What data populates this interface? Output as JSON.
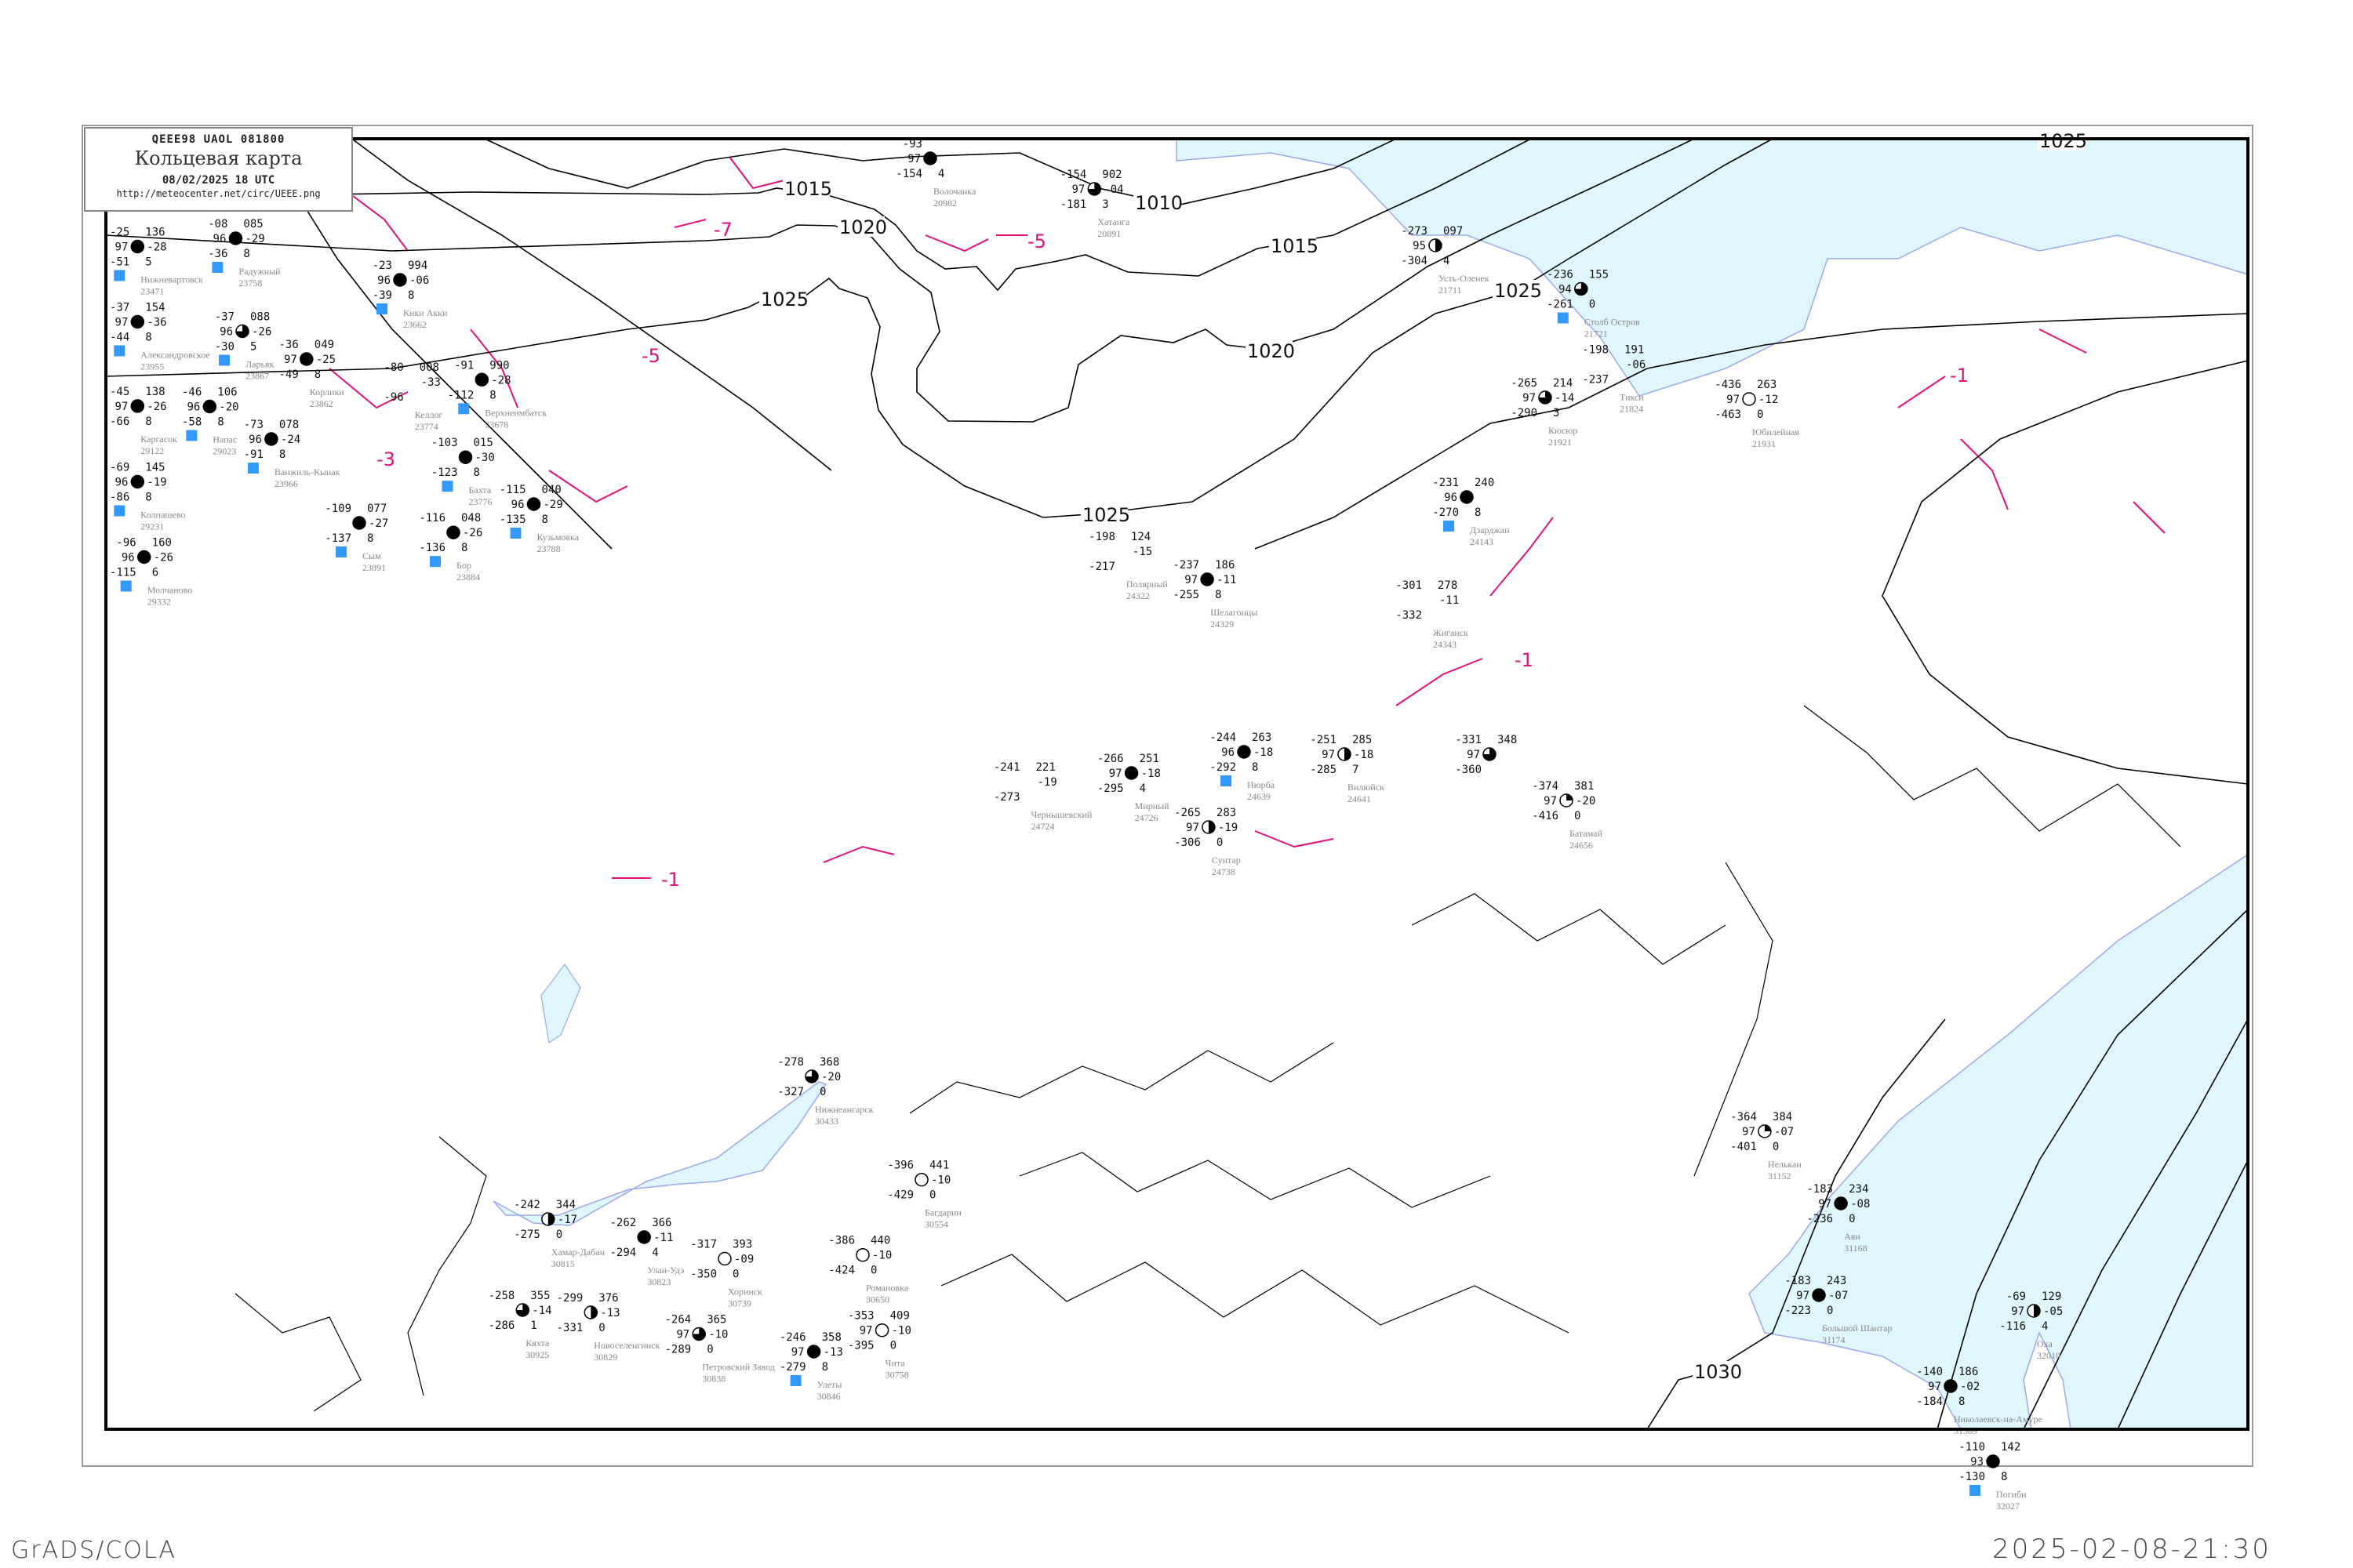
{
  "header": {
    "bulletin_code": "QEEE98   UAOL   081800",
    "title": "Кольцевая карта",
    "datetime": "08/02/2025 18 UTC",
    "url": "http://meteocenter.net/circ/UEEE.png"
  },
  "footer": {
    "software": "GrADS/COLA",
    "generated": "2025-02-08-21:30"
  },
  "colors": {
    "isobar": "#000000",
    "isotherm": "#e0107a",
    "water": "#e0f6fd",
    "coastline": "#9aa8f0",
    "snow_marker": "#3399ff",
    "station_name": "#888888"
  },
  "isobar_labels": [
    "1010",
    "1015",
    "1020",
    "1025",
    "1015",
    "1020",
    "1025",
    "1025",
    "1030",
    "1025"
  ],
  "isotherm_labels": [
    "-5",
    "-3",
    "-1",
    "-1",
    "-7",
    "-1",
    "-5"
  ],
  "stations": [
    {
      "name": "Волочанка",
      "id": "20982",
      "tl": "-93",
      "ml": "97",
      "bl": "-154",
      "tr": "",
      "mr": "",
      "br": "4",
      "cover": "full"
    },
    {
      "name": "Хатанга",
      "id": "20891",
      "tl": "-154",
      "ml": "97",
      "bl": "-181",
      "tr": "902",
      "mr": "-04",
      "br": "3",
      "cover": "three-quarter"
    },
    {
      "name": "Усть-Оленек",
      "id": "21711",
      "tl": "-273",
      "ml": "95",
      "bl": "-304",
      "tr": "097",
      "mr": "",
      "br": "4",
      "cover": "half"
    },
    {
      "name": "Столб Остров",
      "id": "21721",
      "tl": "-236",
      "ml": "94",
      "bl": "-261",
      "tr": "155",
      "mr": "",
      "br": "0",
      "cover": "three-quarter",
      "snow": true
    },
    {
      "name": "Тикси",
      "id": "21824",
      "tl": "-198",
      "ml": "",
      "bl": "-237",
      "tr": "191",
      "mr": "-06",
      "br": "",
      "cover": "none"
    },
    {
      "name": "Кюсюр",
      "id": "21921",
      "tl": "-265",
      "ml": "97",
      "bl": "-290",
      "tr": "214",
      "mr": "-14",
      "br": "3",
      "cover": "three-quarter"
    },
    {
      "name": "Юбилейная",
      "id": "21931",
      "tl": "-436",
      "ml": "97",
      "bl": "-463",
      "tr": "263",
      "mr": "-12",
      "br": "0",
      "cover": "empty"
    },
    {
      "name": "Дзарджан",
      "id": "24143",
      "tl": "-231",
      "ml": "96",
      "bl": "-270",
      "tr": "240",
      "mr": "",
      "br": "8",
      "cover": "full",
      "snow": true
    },
    {
      "name": "Полярный",
      "id": "24322",
      "tl": "-198",
      "ml": "",
      "bl": "-217",
      "tr": "124",
      "mr": "-15",
      "br": "",
      "cover": "none"
    },
    {
      "name": "Шелагонцы",
      "id": "24329",
      "tl": "-237",
      "ml": "97",
      "bl": "-255",
      "tr": "186",
      "mr": "-11",
      "br": "8",
      "cover": "full"
    },
    {
      "name": "Жиганск",
      "id": "24343",
      "tl": "-301",
      "ml": "",
      "bl": "-332",
      "tr": "278",
      "mr": "-11",
      "br": "",
      "cover": "none"
    },
    {
      "name": "Нюрба",
      "id": "24639",
      "tl": "-244",
      "ml": "96",
      "bl": "-292",
      "tr": "263",
      "mr": "-18",
      "br": "8",
      "cover": "full",
      "snow": true
    },
    {
      "name": "Вилюйск",
      "id": "24641",
      "tl": "-251",
      "ml": "97",
      "bl": "-285",
      "tr": "285",
      "mr": "-18",
      "br": "7",
      "cover": "half"
    },
    {
      "name": "Мирный",
      "id": "24726",
      "tl": "-266",
      "ml": "97",
      "bl": "-295",
      "tr": "251",
      "mr": "-18",
      "br": "4",
      "cover": "full"
    },
    {
      "name": "Чернышевский",
      "id": "24724",
      "tl": "-241",
      "ml": "",
      "bl": "-273",
      "tr": "221",
      "mr": "-19",
      "br": "",
      "cover": "none"
    },
    {
      "name": "Сунтар",
      "id": "24738",
      "tl": "-265",
      "ml": "97",
      "bl": "-306",
      "tr": "283",
      "mr": "-19",
      "br": "0",
      "cover": "half"
    },
    {
      "tl": "-331",
      "ml": "97",
      "bl": "-360",
      "tr": "348",
      "mr": "",
      "br": "",
      "cover": "three-quarter"
    },
    {
      "name": "Батамай",
      "id": "24656",
      "tl": "-374",
      "ml": "97",
      "bl": "-416",
      "tr": "381",
      "mr": "-20",
      "br": "0",
      "cover": "quarter"
    },
    {
      "name": "Нелькан",
      "id": "31152",
      "tl": "-364",
      "ml": "97",
      "bl": "-401",
      "tr": "384",
      "mr": "-07",
      "br": "0",
      "cover": "quarter"
    },
    {
      "name": "Аян",
      "id": "31168",
      "tl": "-183",
      "ml": "97",
      "bl": "-236",
      "tr": "234",
      "mr": "-08",
      "br": "0",
      "cover": "full"
    },
    {
      "name": "Большой Шантар",
      "id": "31174",
      "tl": "-183",
      "ml": "97",
      "bl": "-223",
      "tr": "243",
      "mr": "-07",
      "br": "0",
      "cover": "full"
    },
    {
      "name": "Николаевск-на-Амуре",
      "id": "31369",
      "tl": "-140",
      "ml": "97",
      "bl": "-184",
      "tr": "186",
      "mr": "-02",
      "br": "8",
      "cover": "full"
    },
    {
      "name": "Оха",
      "id": "32010",
      "tl": "-69",
      "ml": "97",
      "bl": "-116",
      "tr": "129",
      "mr": "-05",
      "br": "4",
      "cover": "half"
    },
    {
      "name": "Погиби",
      "id": "32027",
      "tl": "-110",
      "ml": "93",
      "bl": "-130",
      "tr": "142",
      "mr": "",
      "br": "8",
      "cover": "full",
      "snow": true
    },
    {
      "name": "Нижневартовск",
      "id": "23471",
      "tl": "-25",
      "ml": "97",
      "bl": "-51",
      "tr": "136",
      "mr": "-28",
      "br": "5",
      "cover": "full",
      "snow": true
    },
    {
      "name": "Александровское",
      "id": "23955",
      "tl": "-37",
      "ml": "97",
      "bl": "-44",
      "tr": "154",
      "mr": "-36",
      "br": "8",
      "cover": "full",
      "snow": true
    },
    {
      "name": "Ларьяк",
      "id": "23867",
      "tl": "-37",
      "ml": "96",
      "bl": "-30",
      "tr": "088",
      "mr": "-26",
      "br": "5",
      "cover": "three-quarter",
      "snow": true
    },
    {
      "name": "Корлики",
      "id": "23862",
      "tl": "-36",
      "ml": "97",
      "bl": "-49",
      "tr": "049",
      "mr": "-25",
      "br": "8",
      "cover": "full"
    },
    {
      "name": "Радужный",
      "id": "23758",
      "tl": "-08",
      "ml": "96",
      "bl": "-36",
      "tr": "085",
      "mr": "-29",
      "br": "8",
      "cover": "full",
      "snow": true
    },
    {
      "name": "Кики Акки",
      "id": "23662",
      "tl": "-23",
      "ml": "96",
      "bl": "-39",
      "tr": "994",
      "mr": "-06",
      "br": "8",
      "cover": "full",
      "snow": true
    },
    {
      "name": "Каргасок",
      "id": "29122",
      "tl": "-45",
      "ml": "97",
      "bl": "-66",
      "tr": "138",
      "mr": "-26",
      "br": "8",
      "cover": "full"
    },
    {
      "name": "Напас",
      "id": "29023",
      "tl": "-46",
      "ml": "96",
      "bl": "-58",
      "tr": "106",
      "mr": "-20",
      "br": "8",
      "cover": "full",
      "snow": true
    },
    {
      "name": "Ванжиль-Кынак",
      "id": "23966",
      "tl": "-73",
      "ml": "96",
      "bl": "-91",
      "tr": "078",
      "mr": "-24",
      "br": "8",
      "cover": "full",
      "snow": true
    },
    {
      "name": "Колпашево",
      "id": "29231",
      "tl": "-69",
      "ml": "96",
      "bl": "-86",
      "tr": "145",
      "mr": "-19",
      "br": "8",
      "cover": "full",
      "snow": true
    },
    {
      "name": "Молчаново",
      "id": "29332",
      "tl": "-96",
      "ml": "96",
      "bl": "-115",
      "tr": "160",
      "mr": "-26",
      "br": "6",
      "cover": "full",
      "snow": true
    },
    {
      "name": "Верхнеимбатск",
      "id": "23678",
      "tl": "-91",
      "ml": "",
      "bl": "-112",
      "tr": "990",
      "mr": "-28",
      "br": "8",
      "cover": "full",
      "snow": true
    },
    {
      "name": "Келлог",
      "id": "23774",
      "tl": "-80",
      "ml": "",
      "bl": "-96",
      "tr": "008",
      "mr": "-33",
      "br": "",
      "cover": "none"
    },
    {
      "name": "Бахта",
      "id": "23776",
      "tl": "-103",
      "ml": "",
      "bl": "-123",
      "tr": "015",
      "mr": "-30",
      "br": "8",
      "cover": "full",
      "snow": true
    },
    {
      "name": "Бор",
      "id": "23884",
      "tl": "-116",
      "ml": "",
      "bl": "-136",
      "tr": "048",
      "mr": "-26",
      "br": "8",
      "cover": "full",
      "snow": true
    },
    {
      "name": "Кузьмовка",
      "id": "23788",
      "tl": "-115",
      "ml": "96",
      "bl": "-135",
      "tr": "040",
      "mr": "-29",
      "br": "8",
      "cover": "full",
      "snow": true
    },
    {
      "name": "Сым",
      "id": "23891",
      "tl": "-109",
      "ml": "",
      "bl": "-137",
      "tr": "077",
      "mr": "-27",
      "br": "8",
      "cover": "full",
      "snow": true
    },
    {
      "name": "Хамар-Дабан",
      "id": "30815",
      "tl": "-242",
      "ml": "",
      "bl": "-275",
      "tr": "344",
      "mr": "-17",
      "br": "0",
      "cover": "half"
    },
    {
      "name": "Улан-Удэ",
      "id": "30823",
      "tl": "-262",
      "ml": "",
      "bl": "-294",
      "tr": "366",
      "mr": "-11",
      "br": "4",
      "cover": "full"
    },
    {
      "name": "Новоселенгинск",
      "id": "30829",
      "tl": "-299",
      "ml": "",
      "bl": "-331",
      "tr": "376",
      "mr": "-13",
      "br": "0",
      "cover": "half"
    },
    {
      "name": "Кяхта",
      "id": "30925",
      "tl": "-258",
      "ml": "",
      "bl": "-286",
      "tr": "355",
      "mr": "-14",
      "br": "1",
      "cover": "three-quarter"
    },
    {
      "name": "Нижнеангарск",
      "id": "30433",
      "tl": "-278",
      "ml": "",
      "bl": "-327",
      "tr": "368",
      "mr": "-20",
      "br": "0",
      "cover": "three-quarter"
    },
    {
      "name": "Хоринск",
      "id": "30739",
      "tl": "-317",
      "ml": "",
      "bl": "-350",
      "tr": "393",
      "mr": "-09",
      "br": "0",
      "cover": "empty"
    },
    {
      "name": "Романовка",
      "id": "30650",
      "tl": "-386",
      "ml": "",
      "bl": "-424",
      "tr": "440",
      "mr": "-10",
      "br": "0",
      "cover": "empty"
    },
    {
      "name": "Багдарин",
      "id": "30554",
      "tl": "-396",
      "ml": "",
      "bl": "-429",
      "tr": "441",
      "mr": "-10",
      "br": "0",
      "cover": "empty"
    },
    {
      "name": "Чита",
      "id": "30758",
      "tl": "-353",
      "ml": "97",
      "bl": "-395",
      "tr": "409",
      "mr": "-10",
      "br": "0",
      "cover": "empty"
    },
    {
      "name": "Улеты",
      "id": "30846",
      "tl": "-246",
      "ml": "97",
      "bl": "-279",
      "tr": "358",
      "mr": "-13",
      "br": "8",
      "cover": "full",
      "snow": true
    },
    {
      "name": "Петровский Завод",
      "id": "30838",
      "tl": "-264",
      "ml": "97",
      "bl": "-289",
      "tr": "365",
      "mr": "-10",
      "br": "0",
      "cover": "three-quarter"
    }
  ]
}
